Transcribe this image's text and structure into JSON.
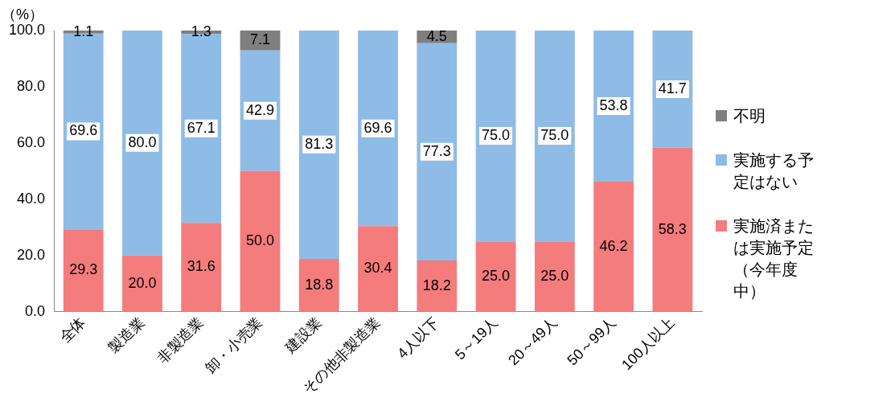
{
  "chart_data": {
    "type": "bar",
    "stacked": true,
    "ylabel": "（%）",
    "categories": [
      "全体",
      "製造業",
      "非製造業",
      "卸・小売業",
      "建設業",
      "その他非製造業",
      "4人以下",
      "5～19人",
      "20～49人",
      "50～99人",
      "100人以上"
    ],
    "series": [
      {
        "name": "実施済または実施予定（今年度中）",
        "color": "#f47c7c",
        "values": [
          29.3,
          20.0,
          31.6,
          50.0,
          18.8,
          30.4,
          18.2,
          25.0,
          25.0,
          46.2,
          58.3
        ],
        "value_labels": [
          "29.3",
          "20.0",
          "31.6",
          "50.0",
          "18.8",
          "30.4",
          "18.2",
          "25.0",
          "25.0",
          "46.2",
          "58.3"
        ]
      },
      {
        "name": "実施する予定はない",
        "color": "#8fbce6",
        "values": [
          69.6,
          80.0,
          67.1,
          42.9,
          81.3,
          69.6,
          77.3,
          75.0,
          75.0,
          53.8,
          41.7
        ],
        "value_labels": [
          "69.6",
          "80.0",
          "67.1",
          "42.9",
          "81.3",
          "69.6",
          "77.3",
          "75.0",
          "75.0",
          "53.8",
          "41.7"
        ]
      },
      {
        "name": "不明",
        "color": "#7f7f7f",
        "values": [
          1.1,
          null,
          1.3,
          7.1,
          null,
          null,
          4.5,
          null,
          null,
          null,
          null
        ],
        "value_labels": [
          "1.1",
          null,
          "1.3",
          "7.1",
          null,
          null,
          "4.5",
          null,
          null,
          null,
          null
        ]
      }
    ],
    "ylim": [
      0,
      100
    ],
    "yticks": [
      {
        "value": 0,
        "label": "0.0"
      },
      {
        "value": 20,
        "label": "20.0"
      },
      {
        "value": 40,
        "label": "40.0"
      },
      {
        "value": 60,
        "label": "60.0"
      },
      {
        "value": 80,
        "label": "80.0"
      },
      {
        "value": 100,
        "label": "100.0"
      }
    ],
    "grid": false,
    "legend": "right"
  }
}
